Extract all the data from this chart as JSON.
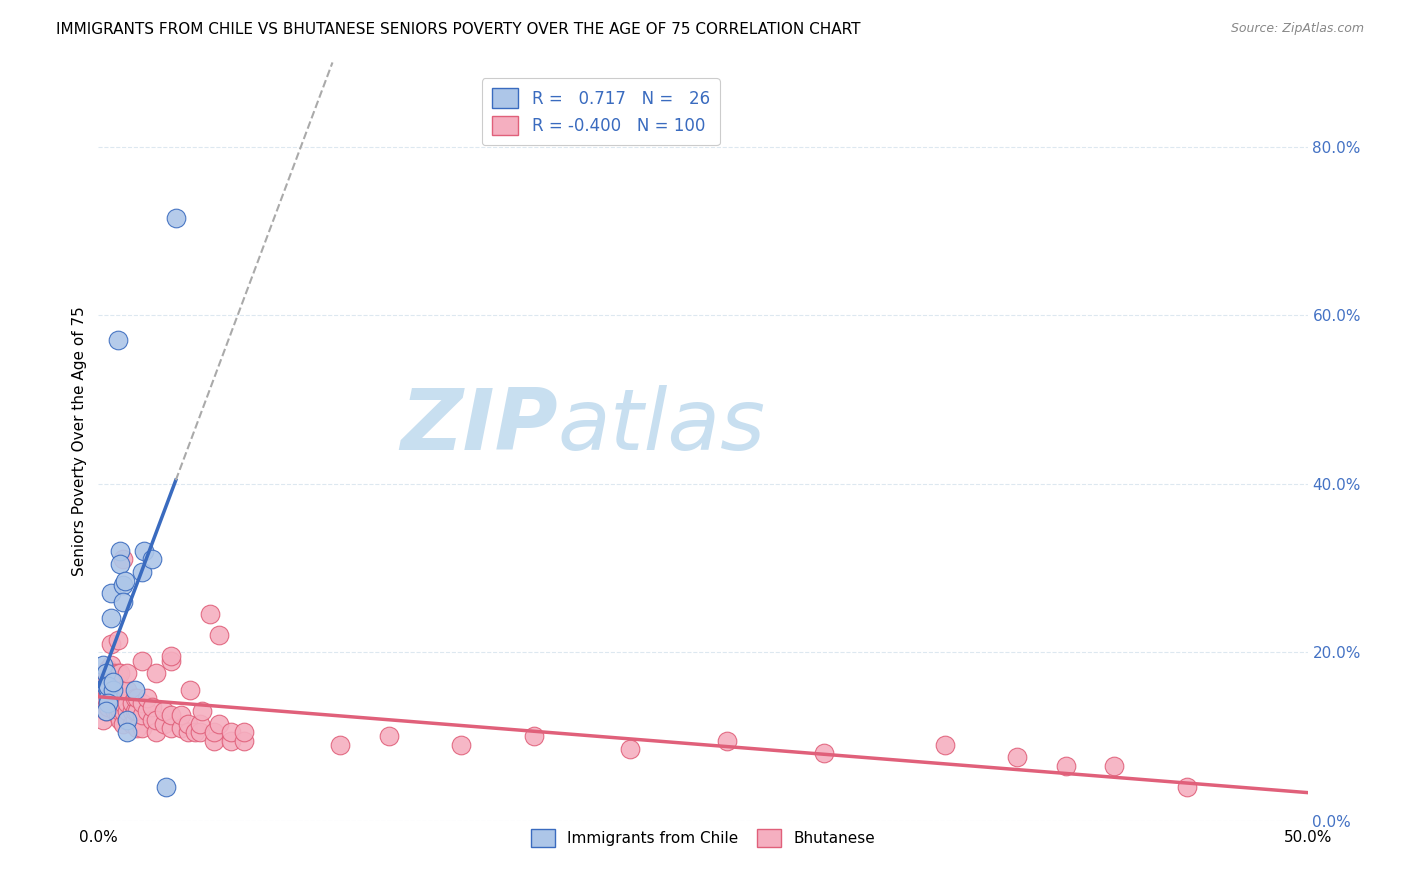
{
  "title": "IMMIGRANTS FROM CHILE VS BHUTANESE SENIORS POVERTY OVER THE AGE OF 75 CORRELATION CHART",
  "source": "Source: ZipAtlas.com",
  "ylabel": "Seniors Poverty Over the Age of 75",
  "right_yticklabels": [
    "0.0%",
    "20.0%",
    "40.0%",
    "60.0%",
    "80.0%"
  ],
  "right_yticks": [
    0.0,
    0.2,
    0.4,
    0.6,
    0.8
  ],
  "blue_color": "#adc6e8",
  "pink_color": "#f5afc0",
  "blue_line_color": "#3a6bbf",
  "pink_line_color": "#e0607a",
  "blue_scatter": [
    [
      0.002,
      0.185
    ],
    [
      0.003,
      0.175
    ],
    [
      0.003,
      0.16
    ],
    [
      0.004,
      0.155
    ],
    [
      0.004,
      0.145
    ],
    [
      0.004,
      0.16
    ],
    [
      0.005,
      0.27
    ],
    [
      0.005,
      0.24
    ],
    [
      0.006,
      0.155
    ],
    [
      0.006,
      0.165
    ],
    [
      0.008,
      0.57
    ],
    [
      0.009,
      0.32
    ],
    [
      0.009,
      0.305
    ],
    [
      0.01,
      0.28
    ],
    [
      0.01,
      0.26
    ],
    [
      0.011,
      0.285
    ],
    [
      0.012,
      0.12
    ],
    [
      0.012,
      0.105
    ],
    [
      0.015,
      0.155
    ],
    [
      0.018,
      0.295
    ],
    [
      0.019,
      0.32
    ],
    [
      0.022,
      0.31
    ],
    [
      0.028,
      0.04
    ],
    [
      0.032,
      0.715
    ],
    [
      0.004,
      0.14
    ],
    [
      0.003,
      0.13
    ]
  ],
  "pink_scatter": [
    [
      0.002,
      0.14
    ],
    [
      0.002,
      0.12
    ],
    [
      0.002,
      0.16
    ],
    [
      0.003,
      0.13
    ],
    [
      0.003,
      0.145
    ],
    [
      0.003,
      0.155
    ],
    [
      0.003,
      0.175
    ],
    [
      0.003,
      0.145
    ],
    [
      0.004,
      0.14
    ],
    [
      0.004,
      0.135
    ],
    [
      0.004,
      0.15
    ],
    [
      0.004,
      0.175
    ],
    [
      0.004,
      0.18
    ],
    [
      0.005,
      0.14
    ],
    [
      0.005,
      0.16
    ],
    [
      0.005,
      0.175
    ],
    [
      0.005,
      0.185
    ],
    [
      0.005,
      0.21
    ],
    [
      0.006,
      0.135
    ],
    [
      0.006,
      0.145
    ],
    [
      0.006,
      0.155
    ],
    [
      0.006,
      0.16
    ],
    [
      0.006,
      0.175
    ],
    [
      0.007,
      0.13
    ],
    [
      0.007,
      0.14
    ],
    [
      0.007,
      0.145
    ],
    [
      0.007,
      0.155
    ],
    [
      0.007,
      0.165
    ],
    [
      0.008,
      0.125
    ],
    [
      0.008,
      0.135
    ],
    [
      0.008,
      0.145
    ],
    [
      0.008,
      0.175
    ],
    [
      0.008,
      0.215
    ],
    [
      0.009,
      0.12
    ],
    [
      0.009,
      0.13
    ],
    [
      0.009,
      0.14
    ],
    [
      0.009,
      0.155
    ],
    [
      0.009,
      0.175
    ],
    [
      0.01,
      0.115
    ],
    [
      0.01,
      0.13
    ],
    [
      0.01,
      0.14
    ],
    [
      0.01,
      0.155
    ],
    [
      0.01,
      0.31
    ],
    [
      0.012,
      0.12
    ],
    [
      0.012,
      0.13
    ],
    [
      0.012,
      0.14
    ],
    [
      0.012,
      0.155
    ],
    [
      0.012,
      0.175
    ],
    [
      0.014,
      0.115
    ],
    [
      0.014,
      0.13
    ],
    [
      0.014,
      0.14
    ],
    [
      0.015,
      0.12
    ],
    [
      0.015,
      0.13
    ],
    [
      0.015,
      0.145
    ],
    [
      0.016,
      0.11
    ],
    [
      0.016,
      0.13
    ],
    [
      0.016,
      0.145
    ],
    [
      0.018,
      0.11
    ],
    [
      0.018,
      0.125
    ],
    [
      0.018,
      0.14
    ],
    [
      0.018,
      0.19
    ],
    [
      0.02,
      0.13
    ],
    [
      0.02,
      0.145
    ],
    [
      0.022,
      0.12
    ],
    [
      0.022,
      0.135
    ],
    [
      0.024,
      0.105
    ],
    [
      0.024,
      0.12
    ],
    [
      0.024,
      0.175
    ],
    [
      0.027,
      0.115
    ],
    [
      0.027,
      0.13
    ],
    [
      0.03,
      0.11
    ],
    [
      0.03,
      0.125
    ],
    [
      0.03,
      0.19
    ],
    [
      0.03,
      0.195
    ],
    [
      0.034,
      0.11
    ],
    [
      0.034,
      0.125
    ],
    [
      0.037,
      0.105
    ],
    [
      0.037,
      0.115
    ],
    [
      0.038,
      0.155
    ],
    [
      0.04,
      0.105
    ],
    [
      0.042,
      0.105
    ],
    [
      0.042,
      0.115
    ],
    [
      0.043,
      0.13
    ],
    [
      0.046,
      0.245
    ],
    [
      0.048,
      0.095
    ],
    [
      0.048,
      0.105
    ],
    [
      0.05,
      0.115
    ],
    [
      0.05,
      0.22
    ],
    [
      0.055,
      0.095
    ],
    [
      0.055,
      0.105
    ],
    [
      0.06,
      0.095
    ],
    [
      0.06,
      0.105
    ],
    [
      0.1,
      0.09
    ],
    [
      0.12,
      0.1
    ],
    [
      0.15,
      0.09
    ],
    [
      0.18,
      0.1
    ],
    [
      0.22,
      0.085
    ],
    [
      0.26,
      0.095
    ],
    [
      0.3,
      0.08
    ],
    [
      0.35,
      0.09
    ],
    [
      0.38,
      0.075
    ],
    [
      0.4,
      0.065
    ],
    [
      0.42,
      0.065
    ],
    [
      0.45,
      0.04
    ]
  ],
  "xlim": [
    0.0,
    0.5
  ],
  "ylim": [
    0.0,
    0.9
  ],
  "figsize": [
    14.06,
    8.92
  ],
  "dpi": 100,
  "watermark_zip": "ZIP",
  "watermark_atlas": "atlas",
  "watermark_color_zip": "#c8dff0",
  "watermark_color_atlas": "#c8dff0",
  "background_color": "#ffffff",
  "grid_color": "#dde8f0"
}
